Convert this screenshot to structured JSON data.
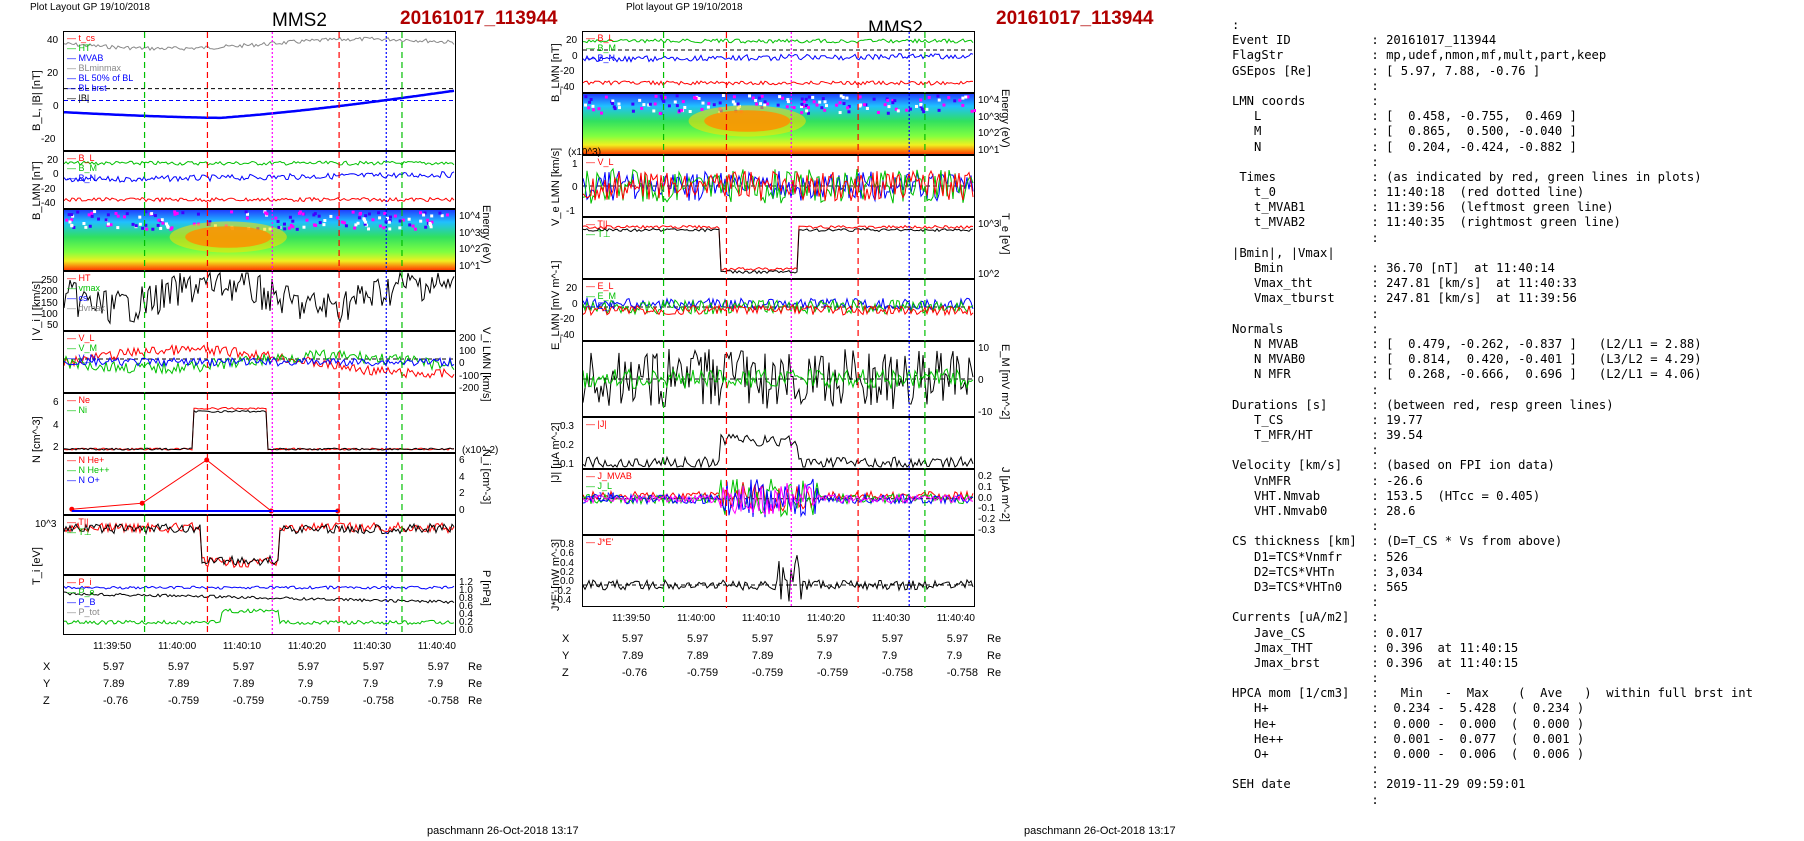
{
  "left": {
    "header": "Plot Layout GP 19/10/2018",
    "probe": "MMS2",
    "event": "20161017_113944",
    "panels": [
      {
        "ylabel": "B_L, |B| [nT]",
        "ticks": [
          "40",
          "20",
          "0",
          "-20"
        ],
        "legend": [
          "t_cs",
          "HT",
          "MVAB",
          "BLminmax",
          "BL 50% of BL",
          "BL brst",
          "|B|"
        ]
      },
      {
        "ylabel": "B_LMN [nT]",
        "ticks": [
          "20",
          "0",
          "-20",
          "-40"
        ],
        "legend": [
          "B_L",
          "B_M",
          "B_N"
        ]
      },
      {
        "ylabel_r": "Energy (eV)",
        "ticks_r": [
          "10^4",
          "10^3",
          "10^2",
          "10^1"
        ]
      },
      {
        "ylabel": "| V_i | [km/s]",
        "ticks": [
          "250",
          "200",
          "150",
          "100",
          "50"
        ],
        "legend": [
          "HT",
          "vmax",
          "cs",
          "dvmax"
        ]
      },
      {
        "ylabel_r": "V_i LMN [km/s]",
        "ticks_r": [
          "200",
          "100",
          "0",
          "-100",
          "-200"
        ],
        "legend": [
          "V_L",
          "V_M",
          "V_N"
        ]
      },
      {
        "ylabel": "N [cm^-3]",
        "ticks": [
          "6",
          "4",
          "2"
        ],
        "legend": [
          "Ne",
          "Ni"
        ]
      },
      {
        "ylabel_r": "N_i [cm^-3]",
        "ticks_r": [
          "6",
          "4",
          "2",
          "0"
        ],
        "unit_note": "(x10^-2)",
        "legend": [
          "N He+",
          "N He++",
          "N O+"
        ]
      },
      {
        "ylabel": "T_i [eV]",
        "ticks": [
          "10^3"
        ],
        "legend": [
          "T||",
          "T⊥"
        ]
      },
      {
        "ylabel_r": "P [nPa]",
        "ticks_r": [
          "1.2",
          "1.0",
          "0.8",
          "0.6",
          "0.4",
          "0.2",
          "0.0"
        ],
        "legend": [
          "P_i",
          "P_e",
          "P_B",
          "P_tot"
        ]
      }
    ],
    "time_labels": [
      "11:39:50",
      "11:40:00",
      "11:40:10",
      "11:40:20",
      "11:40:30",
      "11:40:40"
    ],
    "ephem": {
      "X": [
        "5.97",
        "5.97",
        "5.97",
        "5.97",
        "5.97",
        "5.97"
      ],
      "Y": [
        "7.89",
        "7.89",
        "7.89",
        "7.9",
        "7.9",
        "7.9"
      ],
      "Z": [
        "-0.76",
        "-0.759",
        "-0.759",
        "-0.759",
        "-0.758",
        "-0.758"
      ],
      "unit": "Re"
    },
    "footer": "paschmann 26-Oct-2018 13:17"
  },
  "right": {
    "header": "Plot layout GP 19/10/2018",
    "probe": "MMS2",
    "event": "20161017_113944",
    "panels": [
      {
        "ylabel": "B_LMN [nT]",
        "ticks": [
          "20",
          "0",
          "-20",
          "-40"
        ],
        "legend": [
          "B_L",
          "B_M",
          "B_N"
        ]
      },
      {
        "ylabel_r": "Energy (eV)",
        "ticks_r": [
          "10^4",
          "10^3",
          "10^2",
          "10^1"
        ]
      },
      {
        "ylabel": "V_e LMN [km/s]",
        "ticks": [
          "1",
          "0",
          "-1"
        ],
        "unit_note": "(x10^3)",
        "legend": [
          "V_L"
        ]
      },
      {
        "ylabel_r": "T_e [eV]",
        "ticks_r": [
          "10^3",
          "10^2"
        ],
        "legend": [
          "T||",
          "T⊥"
        ]
      },
      {
        "ylabel": "E_LMN [mV m^-1]",
        "ticks": [
          "20",
          "0",
          "-20",
          "-40"
        ],
        "legend": [
          "E_L",
          "E_M",
          "E_N"
        ]
      },
      {
        "ylabel_r": "E_M [mV m^-2]",
        "ticks_r": [
          "10",
          "0",
          "-10"
        ]
      },
      {
        "ylabel": "|J| [μA m^-2]",
        "ticks": [
          "0.3",
          "0.2",
          "0.1"
        ],
        "legend": [
          "|J|"
        ]
      },
      {
        "ylabel_r": "J [μA m^-2]",
        "ticks_r": [
          "0.2",
          "0.1",
          "0.0",
          "-0.1",
          "-0.2",
          "-0.3"
        ],
        "legend": [
          "J_MVAB",
          "J_L",
          "J_M"
        ]
      },
      {
        "ylabel": "J*E' [nW m^-3]",
        "ticks": [
          "0.8",
          "0.6",
          "0.4",
          "0.2",
          "0.0",
          "-0.2",
          "-0.4"
        ],
        "legend": [
          "J*E'"
        ]
      }
    ],
    "time_labels": [
      "11:39:50",
      "11:40:00",
      "11:40:10",
      "11:40:20",
      "11:40:30",
      "11:40:40"
    ],
    "ephem": {
      "X": [
        "5.97",
        "5.97",
        "5.97",
        "5.97",
        "5.97",
        "5.97"
      ],
      "Y": [
        "7.89",
        "7.89",
        "7.89",
        "7.9",
        "7.9",
        "7.9"
      ],
      "Z": [
        "-0.76",
        "-0.759",
        "-0.759",
        "-0.759",
        "-0.758",
        "-0.758"
      ],
      "unit": "Re"
    },
    "footer": "paschmann 26-Oct-2018 13:17"
  },
  "info_lines": [
    [
      ":",
      ""
    ],
    [
      "Event ID",
      ": 20161017_113944"
    ],
    [
      "FlagStr",
      ": mp,udef,nmon,mf,mult,part,keep"
    ],
    [
      "GSEpos [Re]",
      ": [ 5.97, 7.88, -0.76 ]"
    ],
    [
      "",
      ":"
    ],
    [
      "LMN coords",
      ":"
    ],
    [
      "   L",
      ": [  0.458, -0.755,  0.469 ]"
    ],
    [
      "   M",
      ": [  0.865,  0.500, -0.040 ]"
    ],
    [
      "   N",
      ": [  0.204, -0.424, -0.882 ]"
    ],
    [
      "",
      ":"
    ],
    [
      " Times",
      ": (as indicated by red, green lines in plots)"
    ],
    [
      "   t_0",
      ": 11:40:18  (red dotted line)"
    ],
    [
      "   t_MVAB1",
      ": 11:39:56  (leftmost green line)"
    ],
    [
      "   t_MVAB2",
      ": 11:40:35  (rightmost green line)"
    ],
    [
      "",
      ":"
    ],
    [
      "|Bmin|, |Vmax|",
      ""
    ],
    [
      "   Bmin",
      ": 36.70 [nT]  at 11:40:14"
    ],
    [
      "   Vmax_tht",
      ": 247.81 [km/s]  at 11:40:33"
    ],
    [
      "   Vmax_tburst",
      ": 247.81 [km/s]  at 11:39:56"
    ],
    [
      "",
      ":"
    ],
    [
      "Normals",
      ":"
    ],
    [
      "   N MVAB",
      ": [  0.479, -0.262, -0.837 ]   (L2/L1 = 2.88)"
    ],
    [
      "   N MVAB0",
      ": [  0.814,  0.420, -0.401 ]   (L3/L2 = 4.29)"
    ],
    [
      "   N MFR",
      ": [  0.268, -0.666,  0.696 ]   (L2/L1 = 4.06)"
    ],
    [
      "",
      ":"
    ],
    [
      "Durations [s]",
      ": (between red, resp green lines)"
    ],
    [
      "   T_CS",
      ": 19.77"
    ],
    [
      "   T_MFR/HT",
      ": 39.54"
    ],
    [
      "",
      ":"
    ],
    [
      "Velocity [km/s]",
      ": (based on FPI ion data)"
    ],
    [
      "   VnMFR",
      ": -26.6"
    ],
    [
      "   VHT.Nmvab",
      ": 153.5  (HTcc = 0.405)"
    ],
    [
      "   VHT.Nmvab0",
      ": 28.6"
    ],
    [
      "",
      ":"
    ],
    [
      "CS thickness [km]",
      ": (D=T_CS * Vs from above)"
    ],
    [
      "   D1=TCS*Vnmfr",
      ": 526"
    ],
    [
      "   D2=TCS*VHTn",
      ": 3,034"
    ],
    [
      "   D3=TCS*VHTn0",
      ": 565"
    ],
    [
      "",
      ":"
    ],
    [
      "Currents [uA/m2]",
      ":"
    ],
    [
      "   Jave_CS",
      ": 0.017"
    ],
    [
      "   Jmax_THT",
      ": 0.396  at 11:40:15"
    ],
    [
      "   Jmax_brst",
      ": 0.396  at 11:40:15"
    ],
    [
      "",
      ":"
    ],
    [
      "HPCA mom [1/cm3]",
      ":   Min   -  Max    (  Ave   )  within full brst int"
    ],
    [
      "   H+",
      ":  0.234 -  5.428  (  0.234 )"
    ],
    [
      "   He+",
      ":  0.000 -  0.000  (  0.000 )"
    ],
    [
      "   He++",
      ":  0.001 -  0.077  (  0.001 )"
    ],
    [
      "   O+",
      ":  0.000 -  0.006  (  0.006 )"
    ],
    [
      "",
      ":"
    ],
    [
      "SEH date",
      ": 2019-11-29 09:59:01"
    ],
    [
      "",
      ":"
    ]
  ],
  "colors": {
    "event_title": "#b00000",
    "red": "#ff0000",
    "green": "#00c000",
    "blue": "#0000ff",
    "magenta": "#ff00ff",
    "gray": "#888888"
  }
}
